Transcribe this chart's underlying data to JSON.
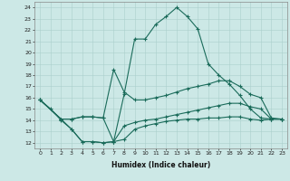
{
  "xlabel": "Humidex (Indice chaleur)",
  "background_color": "#cce8e6",
  "grid_color": "#aacfcc",
  "line_color": "#1a6b5a",
  "xlim": [
    -0.5,
    23.5
  ],
  "ylim": [
    11.5,
    24.5
  ],
  "yticks": [
    12,
    13,
    14,
    15,
    16,
    17,
    18,
    19,
    20,
    21,
    22,
    23,
    24
  ],
  "xticks": [
    0,
    1,
    2,
    3,
    4,
    5,
    6,
    7,
    8,
    9,
    10,
    11,
    12,
    13,
    14,
    15,
    16,
    17,
    18,
    19,
    20,
    21,
    22,
    23
  ],
  "line1_x": [
    0,
    1,
    2,
    3,
    4,
    5,
    6,
    7,
    8,
    9,
    10,
    11,
    12,
    13,
    14,
    15,
    16,
    17,
    18,
    19,
    20,
    21,
    22,
    23
  ],
  "line1_y": [
    15.8,
    15.0,
    14.0,
    13.2,
    12.1,
    12.1,
    12.0,
    12.1,
    16.3,
    21.2,
    21.2,
    22.5,
    23.2,
    24.0,
    23.2,
    22.1,
    19.0,
    18.0,
    17.2,
    16.2,
    15.0,
    14.2,
    14.1,
    14.1
  ],
  "line2_x": [
    0,
    2,
    3,
    4,
    5,
    6,
    7,
    8,
    9,
    10,
    11,
    12,
    13,
    14,
    15,
    16,
    17,
    18,
    19,
    20,
    21,
    22,
    23
  ],
  "line2_y": [
    15.8,
    14.1,
    14.1,
    14.3,
    14.3,
    14.2,
    18.5,
    16.5,
    15.8,
    15.8,
    16.0,
    16.2,
    16.5,
    16.8,
    17.0,
    17.2,
    17.5,
    17.5,
    17.0,
    16.3,
    16.0,
    14.2,
    14.1
  ],
  "line3_x": [
    0,
    2,
    3,
    4,
    5,
    6,
    7,
    8,
    9,
    10,
    11,
    12,
    13,
    14,
    15,
    16,
    17,
    18,
    19,
    20,
    21,
    22,
    23
  ],
  "line3_y": [
    15.8,
    14.1,
    14.1,
    14.3,
    14.3,
    14.2,
    12.1,
    13.5,
    13.8,
    14.0,
    14.1,
    14.3,
    14.5,
    14.7,
    14.9,
    15.1,
    15.3,
    15.5,
    15.5,
    15.2,
    15.0,
    14.1,
    14.1
  ],
  "line4_x": [
    0,
    2,
    3,
    4,
    5,
    6,
    7,
    8,
    9,
    10,
    11,
    12,
    13,
    14,
    15,
    16,
    17,
    18,
    19,
    20,
    21,
    22,
    23
  ],
  "line4_y": [
    15.8,
    14.1,
    13.2,
    12.1,
    12.1,
    12.0,
    12.1,
    12.3,
    13.2,
    13.5,
    13.7,
    13.9,
    14.0,
    14.1,
    14.1,
    14.2,
    14.2,
    14.3,
    14.3,
    14.1,
    14.0,
    14.1,
    14.1
  ]
}
